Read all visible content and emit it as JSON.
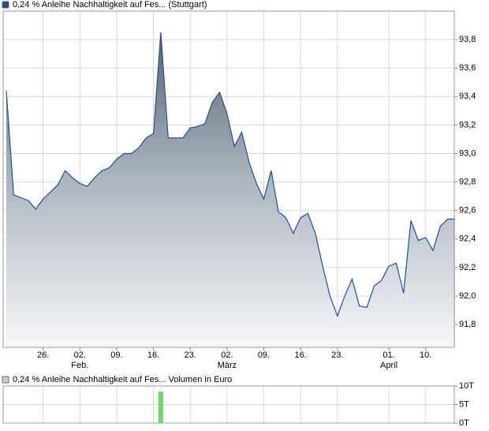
{
  "chart_data": [
    {
      "type": "area",
      "series": [
        {
          "name": "0,24 % Anleihe Nachhaltigkeit auf Fes... (Stuttgart)",
          "color": "#1f4e9c",
          "values": [
            93.44,
            92.71,
            92.69,
            92.67,
            92.61,
            92.68,
            92.73,
            92.78,
            92.88,
            92.83,
            92.79,
            92.77,
            92.83,
            92.88,
            92.9,
            92.96,
            93.0,
            93.0,
            93.04,
            93.11,
            93.14,
            93.85,
            93.11,
            93.11,
            93.11,
            93.18,
            93.19,
            93.21,
            93.36,
            93.43,
            93.28,
            93.05,
            93.15,
            92.94,
            92.79,
            92.68,
            92.88,
            92.59,
            92.55,
            92.44,
            92.55,
            92.58,
            92.44,
            92.21,
            92.0,
            91.86,
            92.0,
            92.12,
            91.93,
            91.92,
            92.07,
            92.11,
            92.21,
            92.23,
            92.02,
            92.53,
            92.39,
            92.41,
            92.32,
            92.49,
            92.54,
            92.54
          ]
        }
      ],
      "categories": [
        null,
        null,
        null,
        null,
        null,
        "26.",
        null,
        null,
        null,
        null,
        "02.",
        null,
        null,
        null,
        null,
        "09.",
        null,
        null,
        null,
        null,
        "16.",
        null,
        null,
        null,
        null,
        "23.",
        null,
        null,
        null,
        null,
        "02.",
        null,
        null,
        null,
        null,
        "09.",
        null,
        null,
        null,
        null,
        "16.",
        null,
        null,
        null,
        null,
        "23.",
        null,
        null,
        null,
        null,
        null,
        null,
        "01.",
        null,
        null,
        null,
        null,
        "10.",
        null,
        null,
        null,
        null
      ],
      "month_labels": [
        null,
        null,
        null,
        null,
        null,
        null,
        null,
        null,
        null,
        null,
        "Feb.",
        null,
        null,
        null,
        null,
        null,
        null,
        null,
        null,
        null,
        null,
        null,
        null,
        null,
        null,
        null,
        null,
        null,
        null,
        null,
        "März",
        null,
        null,
        null,
        null,
        null,
        null,
        null,
        null,
        null,
        null,
        null,
        null,
        null,
        null,
        null,
        null,
        null,
        null,
        null,
        null,
        null,
        "April",
        null,
        null,
        null,
        null,
        null,
        null,
        null,
        null,
        null
      ],
      "ylim": [
        91.64,
        94.0
      ],
      "yticks": [
        {
          "value": 91.8,
          "label": "91,8"
        },
        {
          "value": 92.0,
          "label": "92,0"
        },
        {
          "value": 92.2,
          "label": "92,2"
        },
        {
          "value": 92.4,
          "label": "92,4"
        },
        {
          "value": 92.6,
          "label": "92,6"
        },
        {
          "value": 92.8,
          "label": "92,8"
        },
        {
          "value": 93.0,
          "label": "93,0"
        },
        {
          "value": 93.2,
          "label": "93,2"
        },
        {
          "value": 93.4,
          "label": "93,4"
        },
        {
          "value": 93.6,
          "label": "93,6"
        },
        {
          "value": 93.8,
          "label": "93,8"
        }
      ],
      "grid": true
    },
    {
      "type": "bar",
      "series": [
        {
          "name": "0,24 % Anleihe Nachhaltigkeit auf Fes... Volumen in Euro",
          "color": "#66dd66",
          "values": [
            0,
            0,
            0,
            0,
            0,
            0,
            0,
            0,
            0,
            0,
            0,
            0,
            0,
            0,
            0,
            0,
            0,
            0,
            0,
            0,
            0,
            8500,
            0,
            0,
            0,
            0,
            0,
            0,
            0,
            0,
            0,
            0,
            0,
            0,
            0,
            0,
            0,
            0,
            0,
            0,
            0,
            0,
            0,
            0,
            0,
            0,
            0,
            0,
            0,
            0,
            0,
            0,
            0,
            0,
            0,
            0,
            0,
            0,
            0,
            0,
            0,
            0
          ]
        }
      ],
      "ylim": [
        0,
        10000
      ],
      "yticks": [
        {
          "value": 0,
          "label": "0T"
        },
        {
          "value": 5000,
          "label": "5T"
        },
        {
          "value": 10000,
          "label": "10T"
        }
      ],
      "grid": true
    }
  ]
}
